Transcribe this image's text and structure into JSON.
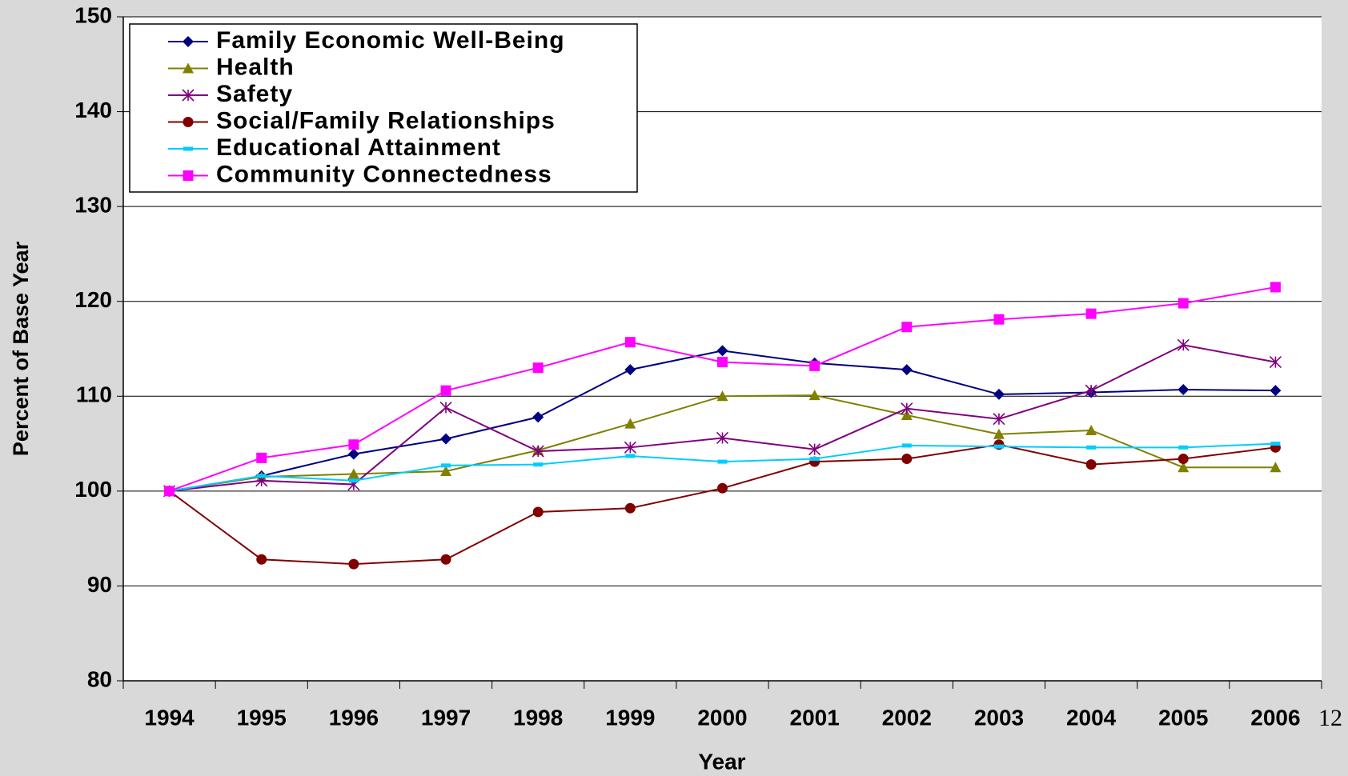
{
  "chart_data": {
    "type": "line",
    "y_label": "Percent of Base Year",
    "x_label": "Year",
    "page_number": "12",
    "categories": [
      "1994",
      "1995",
      "1996",
      "1997",
      "1998",
      "1999",
      "2000",
      "2001",
      "2002",
      "2003",
      "2004",
      "2005",
      "2006"
    ],
    "series": [
      {
        "name": "Family Economic Well-Being",
        "color": "#000080",
        "marker": "diamond",
        "values": [
          100,
          101.6,
          103.9,
          105.5,
          107.8,
          112.8,
          114.8,
          113.5,
          112.8,
          110.2,
          110.4,
          110.7,
          110.6
        ]
      },
      {
        "name": "Health",
        "color": "#808000",
        "marker": "triangle",
        "values": [
          100,
          101.5,
          101.8,
          102.1,
          104.3,
          107.1,
          110.0,
          110.1,
          108.0,
          106.0,
          106.4,
          102.5,
          102.5
        ]
      },
      {
        "name": "Safety",
        "color": "#800080",
        "marker": "asterisk",
        "values": [
          100,
          101.1,
          100.7,
          108.8,
          104.2,
          104.6,
          105.6,
          104.4,
          108.7,
          107.6,
          110.6,
          115.4,
          113.6
        ]
      },
      {
        "name": "Social/Family Relationships",
        "color": "#800000",
        "marker": "circle",
        "values": [
          100,
          92.8,
          92.3,
          92.8,
          97.8,
          98.2,
          100.3,
          103.1,
          103.4,
          104.9,
          102.8,
          103.4,
          104.6
        ]
      },
      {
        "name": "Educational Attainment",
        "color": "#00ccff",
        "marker": "dash",
        "values": [
          100,
          101.6,
          101.1,
          102.7,
          102.8,
          103.7,
          103.1,
          103.4,
          104.8,
          104.7,
          104.6,
          104.6,
          105.0
        ]
      },
      {
        "name": "Community Connectedness",
        "color": "#ff00ff",
        "marker": "square",
        "values": [
          100,
          103.5,
          104.9,
          110.6,
          113.0,
          115.7,
          113.6,
          113.2,
          117.3,
          118.1,
          118.7,
          119.8,
          121.5
        ]
      }
    ],
    "ylim": [
      80,
      150
    ],
    "yticks": [
      80,
      90,
      100,
      110,
      120,
      130,
      140,
      150
    ],
    "grid": true,
    "legend": "upper left"
  }
}
